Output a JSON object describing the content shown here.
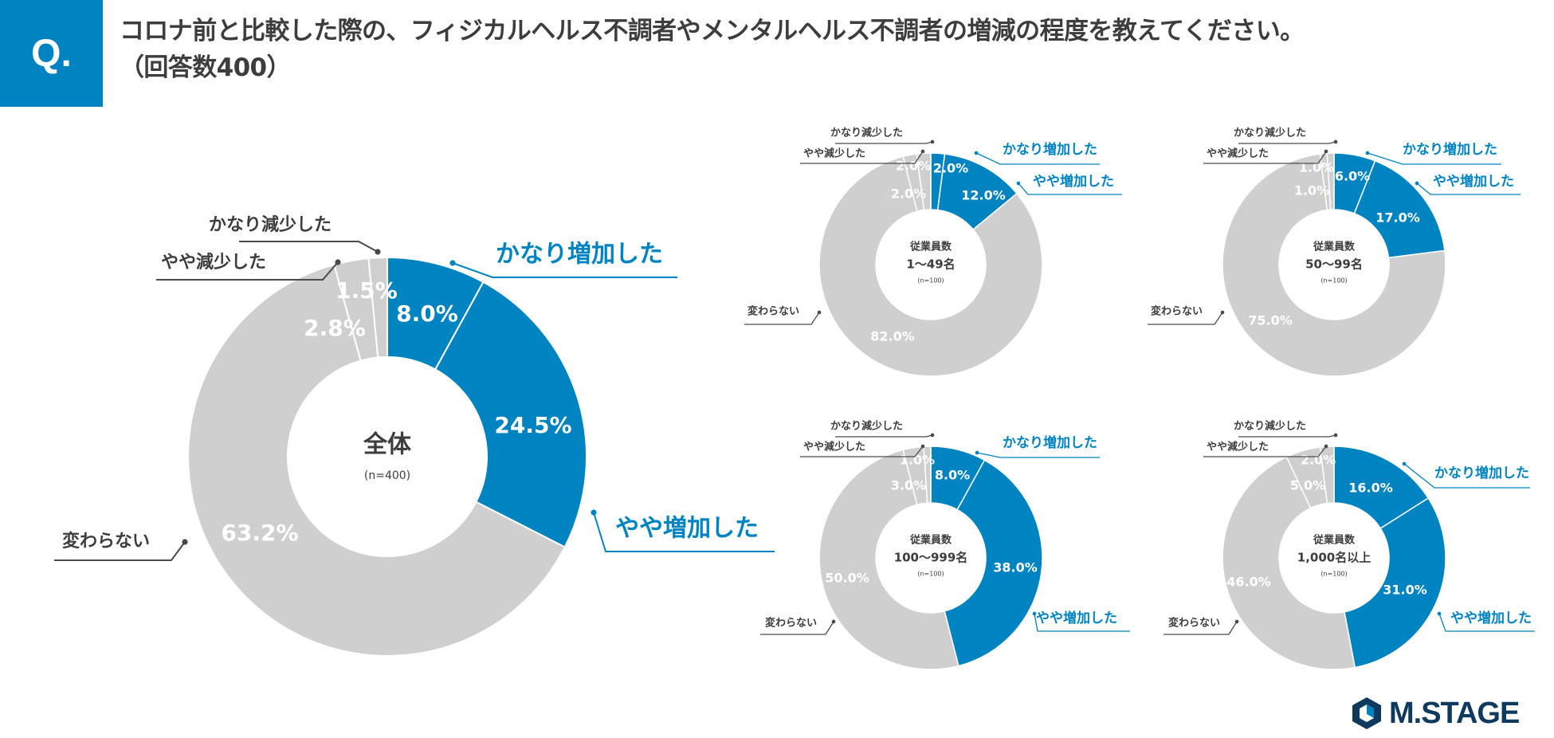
{
  "header": {
    "q_label": "Q.",
    "question": "コロナ前と比較した際の、フィジカルヘルス不調者やメンタルヘルス不調者の増減の程度を教えてください。",
    "sample": "（回答数400）"
  },
  "colors": {
    "increase": "#0083c1",
    "other": "#d0cfd0",
    "leader_gray": "#4a4a4a",
    "text_dark": "#3d3d3d"
  },
  "category_labels": [
    "かなり増加した",
    "やや増加した",
    "変わらない",
    "やや減少した",
    "かなり減少した"
  ],
  "chart_data": [
    {
      "type": "pie",
      "id": "total",
      "center_title": "全体",
      "center_note": "(n=400)",
      "categories": [
        "かなり増加した",
        "やや増加した",
        "変わらない",
        "やや減少した",
        "かなり減少した"
      ],
      "values": [
        8.0,
        24.5,
        63.2,
        2.8,
        1.5
      ],
      "value_labels": [
        "8.0%",
        "24.5%",
        "63.2%",
        "2.8%",
        "1.5%"
      ]
    },
    {
      "type": "pie",
      "id": "1-49",
      "center_title": "従業員数",
      "center_sub": "1〜49名",
      "center_note": "(n=100)",
      "categories": [
        "かなり増加した",
        "やや増加した",
        "変わらない",
        "やや減少した",
        "かなり減少した"
      ],
      "values": [
        2.0,
        12.0,
        82.0,
        2.0,
        2.0
      ],
      "value_labels": [
        "2.0%",
        "12.0%",
        "82.0%",
        "2.0%",
        "2.0%"
      ]
    },
    {
      "type": "pie",
      "id": "50-99",
      "center_title": "従業員数",
      "center_sub": "50〜99名",
      "center_note": "(n=100)",
      "categories": [
        "かなり増加した",
        "やや増加した",
        "変わらない",
        "やや減少した",
        "かなり減少した"
      ],
      "values": [
        6.0,
        17.0,
        75.0,
        1.0,
        1.0
      ],
      "value_labels": [
        "6.0%",
        "17.0%",
        "75.0%",
        "1.0%",
        "1.0%"
      ]
    },
    {
      "type": "pie",
      "id": "100-999",
      "center_title": "従業員数",
      "center_sub": "100〜999名",
      "center_note": "(n=100)",
      "categories": [
        "かなり増加した",
        "やや増加した",
        "変わらない",
        "やや減少した",
        "かなり減少した"
      ],
      "values": [
        8.0,
        38.0,
        50.0,
        3.0,
        1.0
      ],
      "value_labels": [
        "8.0%",
        "38.0%",
        "50.0%",
        "3.0%",
        "1.0%"
      ]
    },
    {
      "type": "pie",
      "id": "1000plus",
      "center_title": "従業員数",
      "center_sub": "1,000名以上",
      "center_note": "(n=100)",
      "categories": [
        "かなり増加した",
        "やや増加した",
        "変わらない",
        "やや減少した",
        "かなり減少した"
      ],
      "values": [
        16.0,
        31.0,
        46.0,
        5.0,
        2.0
      ],
      "value_labels": [
        "16.0%",
        "31.0%",
        "46.0%",
        "5.0%",
        "2.0%"
      ]
    }
  ],
  "logo": {
    "text": "M.STAGE"
  }
}
